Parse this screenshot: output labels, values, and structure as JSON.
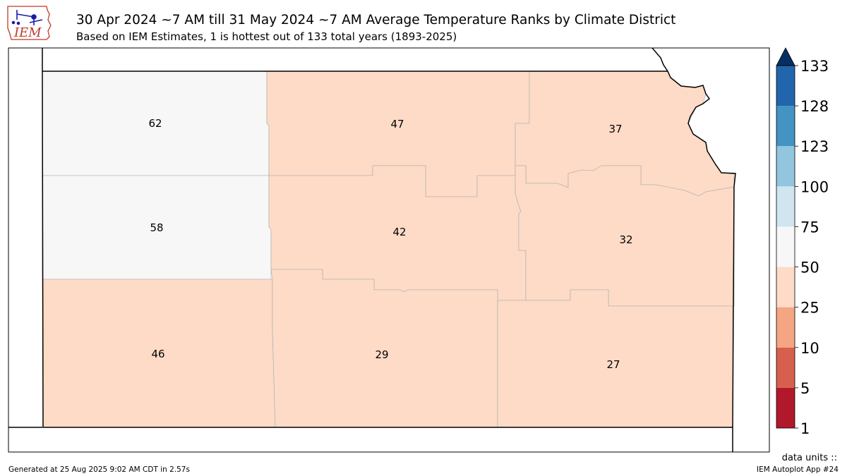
{
  "header": {
    "title": "30 Apr 2024 ~7 AM till 31 May 2024 ~7 AM Average Temperature Ranks by Climate District",
    "subtitle": "Based on IEM Estimates, 1 is hottest out of 133 total years (1893-2025)",
    "logo_text": "IEM"
  },
  "districts": [
    {
      "id": "northwest",
      "rank": "62",
      "color": "#f7f7f7"
    },
    {
      "id": "north-central",
      "rank": "47",
      "color": "#fddbc7"
    },
    {
      "id": "northeast",
      "rank": "37",
      "color": "#fddbc7"
    },
    {
      "id": "west-central",
      "rank": "58",
      "color": "#f7f7f7"
    },
    {
      "id": "central",
      "rank": "42",
      "color": "#fddbc7"
    },
    {
      "id": "east-central",
      "rank": "32",
      "color": "#fddbc7"
    },
    {
      "id": "southwest",
      "rank": "46",
      "color": "#fddbc7"
    },
    {
      "id": "south-central",
      "rank": "29",
      "color": "#fddbc7"
    },
    {
      "id": "southeast",
      "rank": "27",
      "color": "#fddbc7"
    }
  ],
  "colorbar": {
    "labels": [
      "1",
      "5",
      "10",
      "25",
      "50",
      "75",
      "100",
      "123",
      "128",
      "133"
    ],
    "colors": [
      "#b2182b",
      "#d6604d",
      "#f4a582",
      "#fddbc7",
      "#f7f7f7",
      "#d1e5f0",
      "#92c5de",
      "#4393c3",
      "#2166ac",
      "#053061"
    ],
    "units_label": "data units ::"
  },
  "footer": {
    "generated": "Generated at 25 Aug 2025 9:02 AM CDT in 2.57s",
    "app": "IEM Autoplot App #24"
  }
}
